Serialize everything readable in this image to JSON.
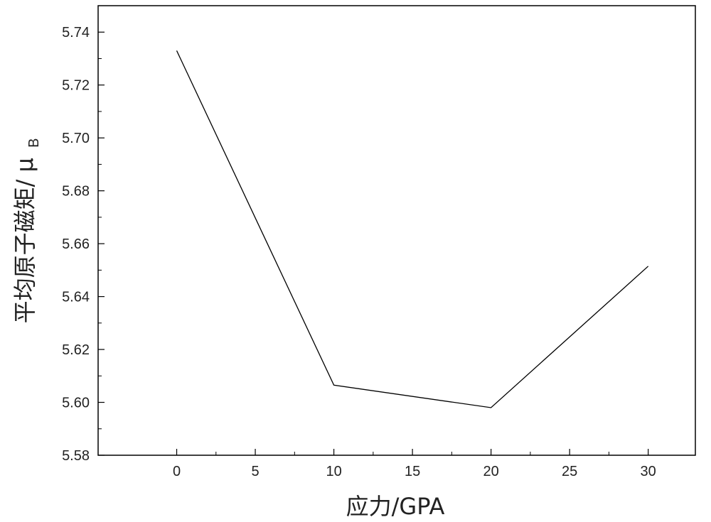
{
  "chart_data": {
    "type": "line",
    "title": "",
    "xlabel": "应力/GPA",
    "ylabel_main": "平均原子磁矩/ μ",
    "ylabel_sub": "B",
    "xlim": [
      -5,
      33
    ],
    "ylim": [
      5.58,
      5.75
    ],
    "xticks": [
      0,
      5,
      10,
      15,
      20,
      25,
      30
    ],
    "yticks": [
      5.58,
      5.6,
      5.62,
      5.64,
      5.66,
      5.68,
      5.7,
      5.72,
      5.74
    ],
    "grid": false,
    "series": [
      {
        "x": [
          0,
          10,
          20,
          30
        ],
        "y": [
          5.733,
          5.6065,
          5.598,
          5.6515
        ],
        "color": "#000000"
      }
    ]
  }
}
